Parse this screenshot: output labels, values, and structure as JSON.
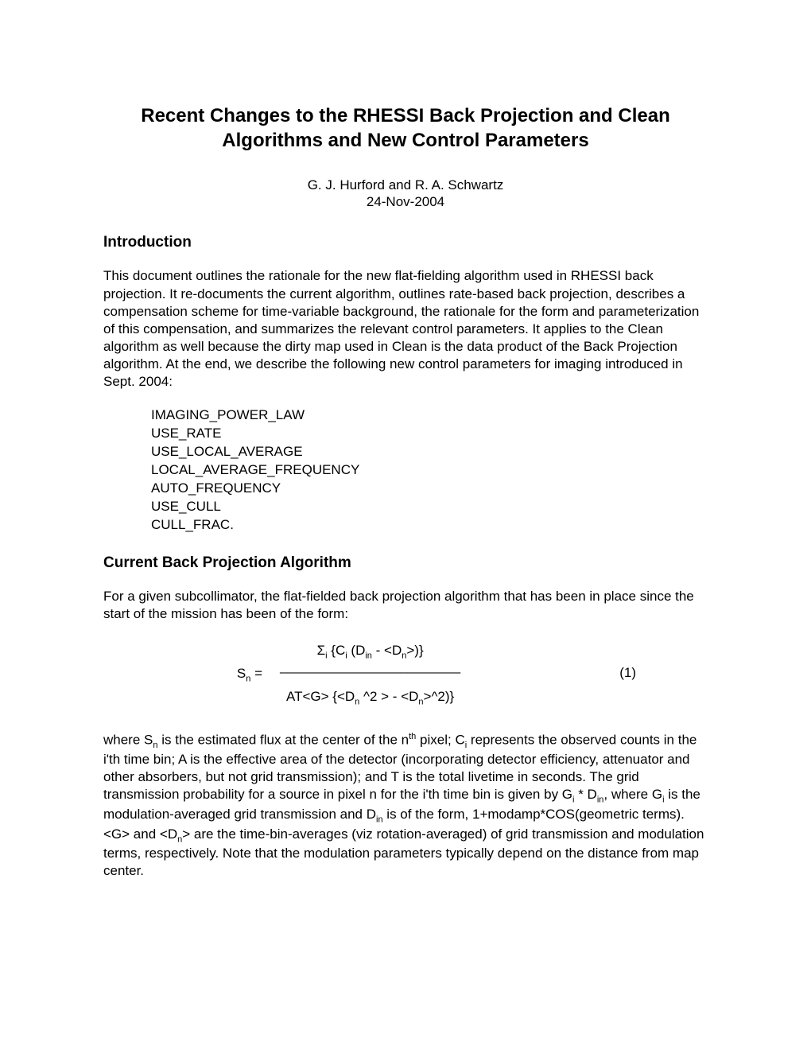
{
  "title": "Recent Changes to the RHESSI Back Projection and Clean Algorithms and New Control Parameters",
  "authors": "G. J. Hurford and R. A. Schwartz",
  "date": "24-Nov-2004",
  "section1_heading": "Introduction",
  "intro_paragraph": "This document outlines the rationale for the new flat-fielding algorithm used in RHESSI back projection.  It re-documents the current algorithm, outlines rate-based back projection, describes a compensation scheme for time-variable background, the rationale for the form and parameterization of this compensation, and summarizes the relevant control parameters.  It applies to the Clean algorithm as well because the dirty map used in Clean is the data product of the Back Projection algorithm.  At the end, we describe the following new control parameters for imaging introduced in Sept. 2004:",
  "params": [
    "IMAGING_POWER_LAW",
    "USE_RATE",
    "USE_LOCAL_AVERAGE",
    "LOCAL_AVERAGE_FREQUENCY",
    "AUTO_FREQUENCY",
    "USE_CULL",
    "CULL_FRAC."
  ],
  "section2_heading": "Current Back Projection Algorithm",
  "algo_paragraph": "For a given subcollimator, the flat-fielded back projection algorithm that has been in place since the start of the mission has been of the form:",
  "equation": {
    "lhs_base": "S",
    "lhs_sub": "n",
    "equals": "   =",
    "numerator_html": "Σ<span class=\"sub\">i</span> {C<span class=\"sub\">i</span> (D<span class=\"sub\">in</span> - &lt;D<span class=\"sub\">n</span>&gt;)}",
    "line": "________________________",
    "denominator_html": "AT&lt;G&gt; {&lt;D<span class=\"sub\">n</span> ^2 &gt; - &lt;D<span class=\"sub\">n</span>&gt;^2)}",
    "number": "(1)"
  },
  "explain_html": "where S<span class=\"sub\">n</span> is the estimated flux at the center of the n<span class=\"sup\">th</span> pixel; C<span class=\"sub\">i</span> represents the observed counts in the i'th time bin; A is the effective area of the detector (incorporating detector efficiency, attenuator and other absorbers, but not grid transmission);  and T is the total livetime in seconds.  The grid transmission probability for a source in pixel n for the i'th time bin is given by G<span class=\"sub\">i</span> * D<span class=\"sub\">in</span>, where G<span class=\"sub\">i</span> is the modulation-averaged grid transmission and D<span class=\"sub\">in</span> is of the form, 1+modamp*COS(geometric terms).   &lt;G&gt; and &lt;D<span class=\"sub\">n</span>&gt; are the time-bin-averages (viz rotation-averaged) of grid transmission and modulation terms, respectively.   Note that the modulation parameters typically depend on the distance from map center.",
  "style": {
    "background_color": "#ffffff",
    "text_color": "#000000",
    "title_fontsize": 24,
    "body_fontsize": 17,
    "heading_fontsize": 19,
    "font_family": "Arial"
  }
}
